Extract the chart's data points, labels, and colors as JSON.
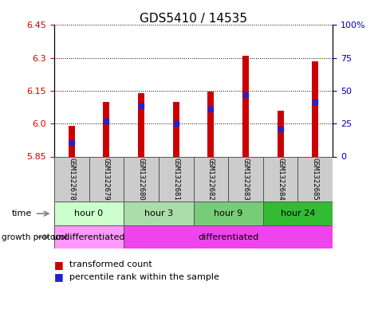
{
  "title": "GDS5410 / 14535",
  "samples": [
    "GSM1322678",
    "GSM1322679",
    "GSM1322680",
    "GSM1322681",
    "GSM1322682",
    "GSM1322683",
    "GSM1322684",
    "GSM1322685"
  ],
  "bar_bottom": 5.85,
  "bar_tops": [
    5.99,
    6.1,
    6.14,
    6.1,
    6.145,
    6.31,
    6.06,
    6.285
  ],
  "blue_positions": [
    5.915,
    6.01,
    6.08,
    6.0,
    6.065,
    6.13,
    5.975,
    6.1
  ],
  "ylim": [
    5.85,
    6.45
  ],
  "yticks_left": [
    5.85,
    6.0,
    6.15,
    6.3,
    6.45
  ],
  "yticks_right_labels": [
    "0",
    "25",
    "50",
    "75",
    "100%"
  ],
  "bar_color": "#cc0000",
  "blue_color": "#2222cc",
  "bar_width": 0.18,
  "blue_size": 4,
  "left_tick_color": "#cc0000",
  "right_tick_color": "#0000bb",
  "sample_area_color": "#cccccc",
  "time_colors": [
    "#ccffcc",
    "#aaddaa",
    "#77cc77",
    "#33bb33"
  ],
  "time_groups": [
    {
      "label": "hour 0",
      "start": 0,
      "end": 1
    },
    {
      "label": "hour 3",
      "start": 2,
      "end": 3
    },
    {
      "label": "hour 9",
      "start": 4,
      "end": 5
    },
    {
      "label": "hour 24",
      "start": 6,
      "end": 7
    }
  ],
  "growth_groups": [
    {
      "label": "undifferentiated",
      "start": 0,
      "end": 1,
      "color": "#ff99ff"
    },
    {
      "label": "differentiated",
      "start": 2,
      "end": 7,
      "color": "#ee44ee"
    }
  ],
  "tick_fontsize": 8,
  "label_fontsize": 8,
  "sample_fontsize": 6.5,
  "title_fontsize": 11
}
